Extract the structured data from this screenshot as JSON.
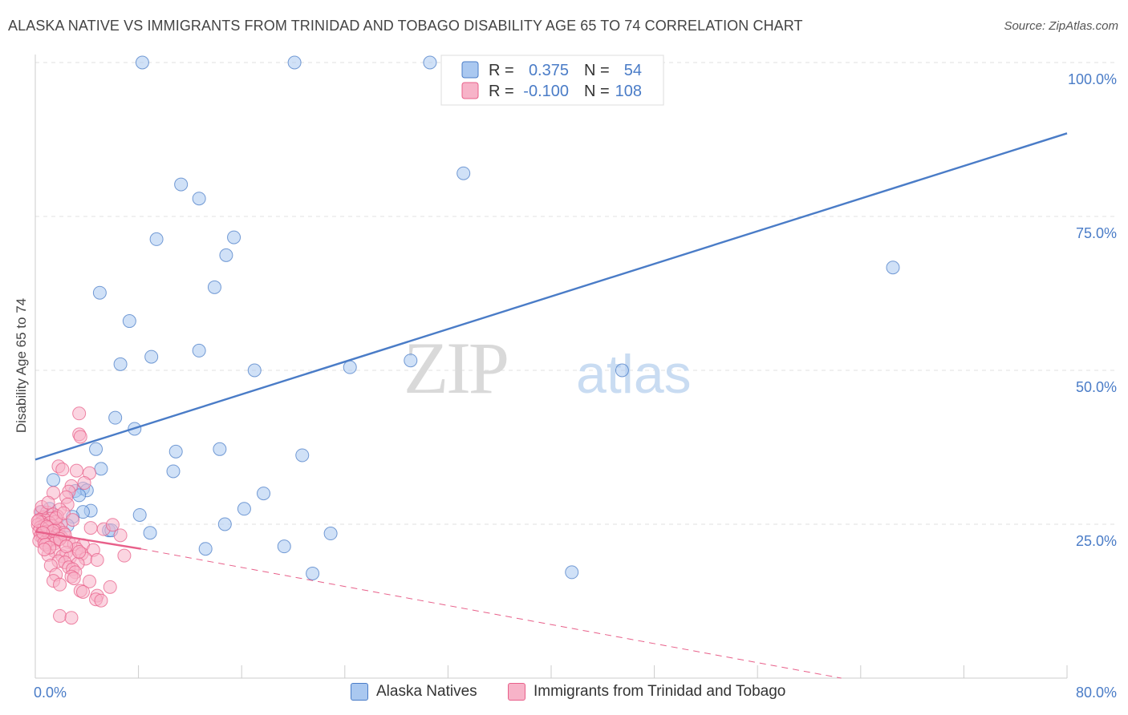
{
  "title": "ALASKA NATIVE VS IMMIGRANTS FROM TRINIDAD AND TOBAGO DISABILITY AGE 65 TO 74 CORRELATION CHART",
  "source": "Source: ZipAtlas.com",
  "watermark": {
    "zip": "ZIP",
    "atlas": "atlas"
  },
  "legend_top": [
    {
      "r_label": "R =",
      "r_value": "0.375",
      "n_label": "N =",
      "n_value": "54",
      "color": "#aac8f0"
    },
    {
      "r_label": "R =",
      "r_value": "-0.100",
      "n_label": "N =",
      "n_value": "108",
      "color": "#f7b3c8"
    }
  ],
  "legend_bottom": [
    {
      "label": "Alaska Natives",
      "color": "#aac8f0"
    },
    {
      "label": "Immigrants from Trinidad and Tobago",
      "color": "#f7b3c8"
    }
  ],
  "chart_data": {
    "type": "scatter",
    "title": "ALASKA NATIVE VS IMMIGRANTS FROM TRINIDAD AND TOBAGO DISABILITY AGE 65 TO 74 CORRELATION CHART",
    "xlabel": "",
    "ylabel": "Disability Age 65 to 74",
    "xlim": [
      0,
      80
    ],
    "ylim": [
      0,
      100
    ],
    "x_tick_labels": [
      "0.0%",
      "80.0%"
    ],
    "y_ticks": [
      25,
      50,
      75,
      100
    ],
    "y_tick_labels": [
      "25.0%",
      "50.0%",
      "75.0%",
      "100.0%"
    ],
    "grid": "horizontal dashed",
    "legend_position": "top-center",
    "series": [
      {
        "name": "Alaska Natives",
        "color": "#4a7cc7",
        "fill": "#aac8f0",
        "points": [
          [
            8.3,
            100
          ],
          [
            20.1,
            100
          ],
          [
            30.6,
            100
          ],
          [
            44.7,
            100
          ],
          [
            33.2,
            82
          ],
          [
            11.3,
            80.2
          ],
          [
            12.7,
            77.9
          ],
          [
            9.4,
            71.3
          ],
          [
            15.4,
            71.6
          ],
          [
            14.8,
            68.7
          ],
          [
            5.0,
            62.6
          ],
          [
            13.9,
            63.5
          ],
          [
            7.3,
            58
          ],
          [
            12.7,
            53.2
          ],
          [
            6.6,
            51
          ],
          [
            9.0,
            52.2
          ],
          [
            17.0,
            50
          ],
          [
            24.4,
            50.5
          ],
          [
            29.1,
            51.6
          ],
          [
            45.5,
            50
          ],
          [
            66.5,
            66.7
          ],
          [
            6.2,
            42.3
          ],
          [
            7.7,
            40.5
          ],
          [
            4.7,
            37.2
          ],
          [
            10.9,
            36.8
          ],
          [
            14.3,
            37.2
          ],
          [
            20.7,
            36.2
          ],
          [
            5.1,
            34
          ],
          [
            10.7,
            33.6
          ],
          [
            1.4,
            32.2
          ],
          [
            3.7,
            30.8
          ],
          [
            3.1,
            30.4
          ],
          [
            4.0,
            30.5
          ],
          [
            3.4,
            29.7
          ],
          [
            17.7,
            30
          ],
          [
            1.1,
            27.5
          ],
          [
            0.5,
            27
          ],
          [
            4.3,
            27.2
          ],
          [
            3.7,
            27
          ],
          [
            8.1,
            26.5
          ],
          [
            2.9,
            26.2
          ],
          [
            16.2,
            27.5
          ],
          [
            14.7,
            25
          ],
          [
            5.7,
            24
          ],
          [
            5.9,
            24
          ],
          [
            8.9,
            23.6
          ],
          [
            22.9,
            23.5
          ],
          [
            13.2,
            21
          ],
          [
            19.3,
            21.4
          ],
          [
            21.5,
            17
          ],
          [
            41.6,
            17.2
          ],
          [
            0.9,
            25
          ],
          [
            1.8,
            23.4
          ],
          [
            2.5,
            24.8
          ]
        ]
      },
      {
        "name": "Immigrants from Trinidad and Tobago",
        "color": "#e8608a",
        "fill": "#f7b3c8",
        "points": [
          [
            3.4,
            43
          ],
          [
            3.4,
            39.6
          ],
          [
            3.5,
            39.2
          ],
          [
            1.8,
            34.4
          ],
          [
            3.2,
            33.7
          ],
          [
            4.2,
            33.3
          ],
          [
            2.1,
            33.9
          ],
          [
            3.8,
            31.7
          ],
          [
            2.8,
            31.2
          ],
          [
            2.6,
            30.3
          ],
          [
            1.4,
            30.1
          ],
          [
            2.4,
            29.4
          ],
          [
            2.5,
            28.2
          ],
          [
            1.9,
            27.4
          ],
          [
            0.4,
            27
          ],
          [
            0.9,
            26.9
          ],
          [
            1.4,
            26.6
          ],
          [
            1.7,
            26.3
          ],
          [
            0.6,
            26.1
          ],
          [
            1.2,
            25.9
          ],
          [
            0.3,
            25.7
          ],
          [
            0.8,
            25.6
          ],
          [
            1.6,
            25.4
          ],
          [
            0.5,
            25.3
          ],
          [
            1.1,
            25.2
          ],
          [
            2.0,
            25.1
          ],
          [
            0.2,
            24.9
          ],
          [
            0.7,
            24.8
          ],
          [
            1.3,
            24.7
          ],
          [
            0.4,
            24.5
          ],
          [
            1.0,
            24.4
          ],
          [
            1.8,
            24.3
          ],
          [
            0.6,
            24.2
          ],
          [
            1.5,
            24.1
          ],
          [
            0.3,
            23.9
          ],
          [
            0.9,
            23.8
          ],
          [
            1.2,
            23.7
          ],
          [
            2.2,
            23.6
          ],
          [
            0.5,
            23.5
          ],
          [
            1.4,
            23.4
          ],
          [
            0.8,
            23.3
          ],
          [
            1.7,
            23.2
          ],
          [
            0.4,
            23.1
          ],
          [
            1.1,
            23
          ],
          [
            2.0,
            22.9
          ],
          [
            0.6,
            22.8
          ],
          [
            1.3,
            22.7
          ],
          [
            0.9,
            22.5
          ],
          [
            1.6,
            22.4
          ],
          [
            0.3,
            22.3
          ],
          [
            1.0,
            22.2
          ],
          [
            2.6,
            22.1
          ],
          [
            0.7,
            22
          ],
          [
            1.5,
            21.9
          ],
          [
            3.0,
            21.8
          ],
          [
            4.3,
            24.4
          ],
          [
            5.3,
            24.2
          ],
          [
            6.6,
            23.2
          ],
          [
            6.0,
            24.9
          ],
          [
            3.7,
            21.6
          ],
          [
            3.2,
            21
          ],
          [
            4.5,
            20.8
          ],
          [
            1.5,
            20.6
          ],
          [
            2.4,
            20.4
          ],
          [
            3.6,
            20.2
          ],
          [
            1.0,
            20
          ],
          [
            2.1,
            19.8
          ],
          [
            2.7,
            19.6
          ],
          [
            3.9,
            19.4
          ],
          [
            4.8,
            19.2
          ],
          [
            6.9,
            19.9
          ],
          [
            1.8,
            19
          ],
          [
            2.3,
            18.8
          ],
          [
            3.3,
            18.6
          ],
          [
            1.2,
            18.3
          ],
          [
            2.6,
            18
          ],
          [
            2.9,
            17.7
          ],
          [
            3.1,
            17.2
          ],
          [
            1.6,
            16.8
          ],
          [
            2.8,
            16.5
          ],
          [
            3.0,
            16.2
          ],
          [
            1.4,
            15.8
          ],
          [
            4.2,
            15.7
          ],
          [
            1.9,
            15.2
          ],
          [
            5.8,
            14.8
          ],
          [
            3.5,
            14.2
          ],
          [
            3.7,
            14
          ],
          [
            4.8,
            13.4
          ],
          [
            4.7,
            12.8
          ],
          [
            5.1,
            12.6
          ],
          [
            1.9,
            10.1
          ],
          [
            2.8,
            9.8
          ],
          [
            0.5,
            27.8
          ],
          [
            1.0,
            28.5
          ],
          [
            1.6,
            26
          ],
          [
            0.2,
            25.5
          ],
          [
            0.9,
            24.6
          ],
          [
            1.4,
            23.9
          ],
          [
            0.6,
            23.6
          ],
          [
            2.3,
            23.3
          ],
          [
            1.9,
            22.6
          ],
          [
            0.8,
            21.7
          ],
          [
            2.4,
            21.4
          ],
          [
            1.1,
            21.2
          ],
          [
            0.7,
            20.9
          ],
          [
            3.4,
            20.5
          ],
          [
            2.2,
            26.8
          ],
          [
            2.9,
            25.7
          ]
        ]
      }
    ],
    "trendlines": [
      {
        "series": "Alaska Natives",
        "x": [
          0,
          80
        ],
        "y": [
          35.5,
          88.5
        ],
        "style": "solid"
      },
      {
        "series": "Immigrants from Trinidad and Tobago",
        "x": [
          0,
          8.2
        ],
        "y": [
          23.8,
          21
        ],
        "style": "solid"
      },
      {
        "series": "Immigrants from Trinidad and Tobago",
        "x": [
          8.2,
          62.5
        ],
        "y": [
          21,
          0
        ],
        "style": "dashed"
      }
    ]
  }
}
